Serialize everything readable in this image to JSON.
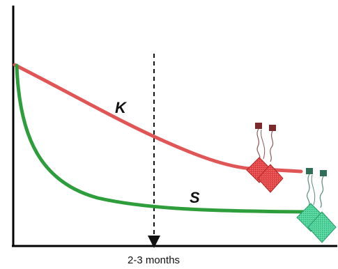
{
  "curves": {
    "k": {
      "label": "K",
      "color": "#e05656"
    },
    "s": {
      "label": "S",
      "color": "#2e9e3c"
    }
  },
  "timepoint": {
    "label": "2-3 months"
  },
  "molecules": {
    "k_icon": {
      "name": "red-chip-molecule-icon",
      "body": "#e64a4a",
      "head": "#7a2a2a"
    },
    "s_icon": {
      "name": "green-chip-molecule-icon",
      "body": "#4fd39a",
      "head": "#2f6f55"
    }
  },
  "colors": {
    "axis": "#000000",
    "marker": "#111111"
  }
}
